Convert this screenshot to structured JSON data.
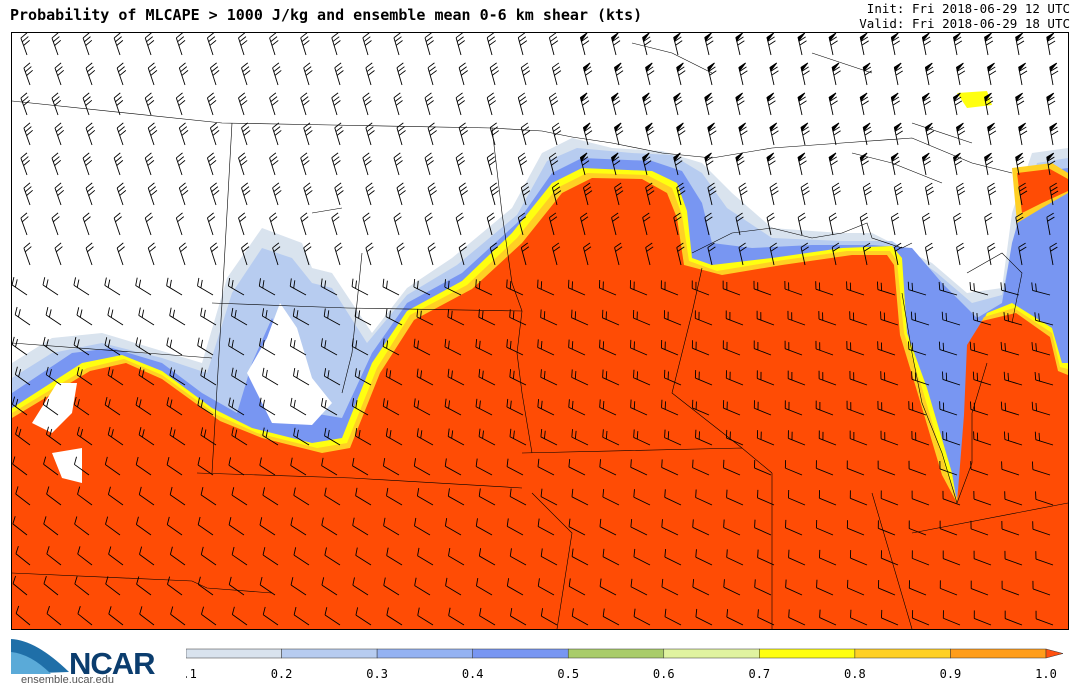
{
  "title": "Probability of MLCAPE > 1000 J/kg and ensemble mean 0-6 km shear (kts)",
  "init_label": "Init: Fri 2018-06-29 12 UTC",
  "valid_label": "Valid: Fri 2018-06-29 18 UTC",
  "logo": {
    "text": "NCAR",
    "url": "ensemble.ucar.edu"
  },
  "colorbar": {
    "ticks": [
      "0.1",
      "0.2",
      "0.3",
      "0.4",
      "0.5",
      "0.6",
      "0.7",
      "0.8",
      "0.9",
      "1.0"
    ],
    "colors": [
      "#d9e3ee",
      "#b7ccf0",
      "#94b2f2",
      "#7896f2",
      "#a9cc6a",
      "#e0f3a0",
      "#ffff10",
      "#ffd024",
      "#ff9d1a"
    ],
    "overflow_color": "#ff5010"
  },
  "colors": {
    "prob_high": "#ff4c05",
    "prob_orange": "#ff9d1a",
    "prob_gold": "#ffd024",
    "prob_yellow": "#ffff10",
    "prob_lightgreen": "#e0f3a0",
    "prob_blue": "#7896f2",
    "prob_lightblue": "#b7ccf0",
    "prob_paleblue": "#d9e3ee"
  }
}
